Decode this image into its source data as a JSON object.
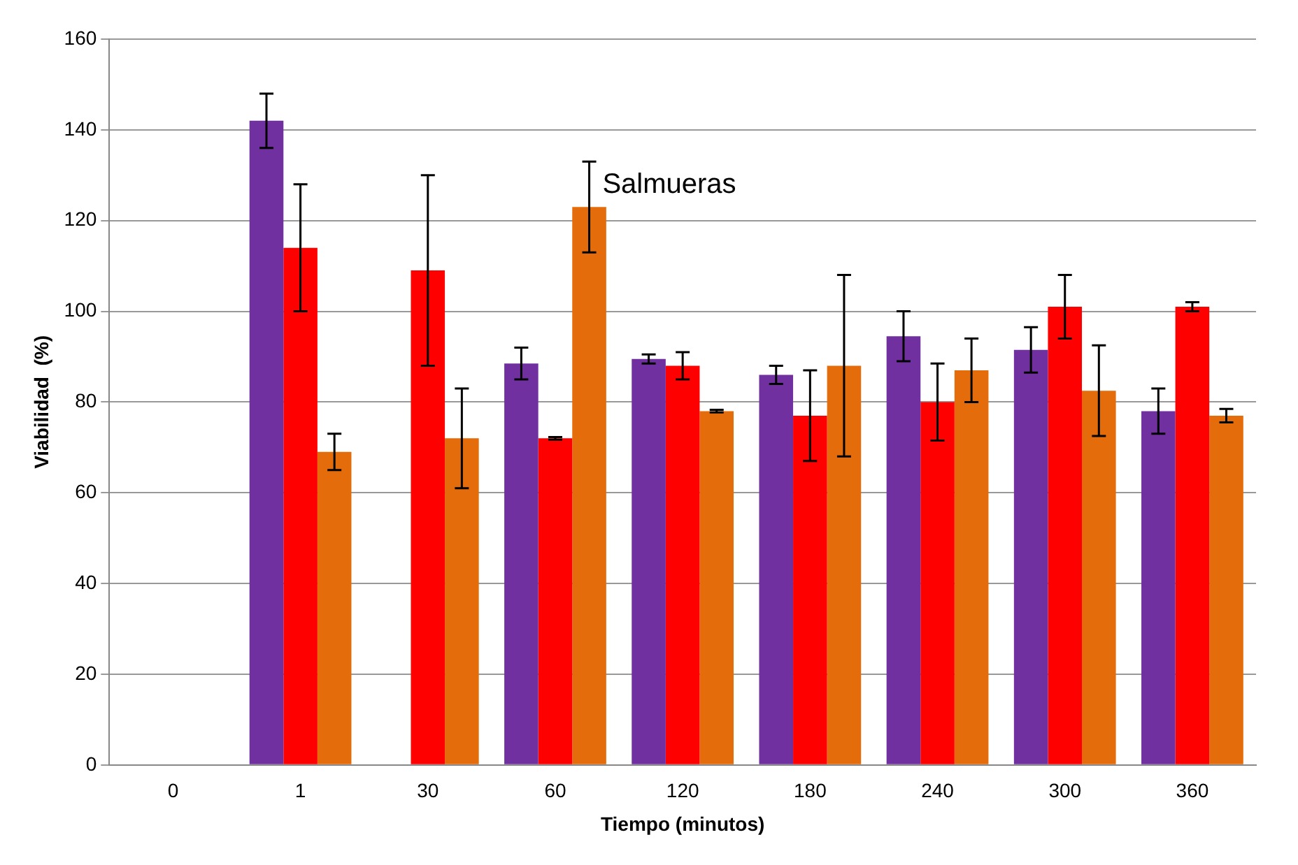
{
  "chart_data": {
    "type": "bar",
    "xlabel": "Tiempo (minutos)",
    "ylabel": "Viabilidad  (%)",
    "annotations": [
      "Salmueras"
    ],
    "categories": [
      "0",
      "1",
      "30",
      "60",
      "120",
      "180",
      "240",
      "300",
      "360"
    ],
    "series": [
      {
        "color": "#7030a0",
        "values": [
          null,
          142,
          null,
          88.5,
          89.5,
          86,
          94.5,
          91.5,
          78
        ],
        "errors": [
          null,
          6,
          null,
          3.5,
          1,
          2,
          5.5,
          5,
          5
        ]
      },
      {
        "color": "#ff0000",
        "values": [
          null,
          114,
          109,
          72,
          88,
          77,
          80,
          101,
          101
        ],
        "errors": [
          null,
          14,
          21,
          0.3,
          3,
          10,
          8.5,
          7,
          1
        ]
      },
      {
        "color": "#e46c0a",
        "values": [
          null,
          69,
          72,
          123,
          78,
          88,
          87,
          82.5,
          77
        ],
        "errors": [
          null,
          4,
          11,
          10,
          0.3,
          20,
          7,
          10,
          1.5
        ]
      }
    ],
    "ylim": [
      0,
      160
    ],
    "yticks": [
      0,
      20,
      40,
      60,
      80,
      100,
      120,
      140,
      160
    ],
    "grid": "y",
    "legend": false
  }
}
